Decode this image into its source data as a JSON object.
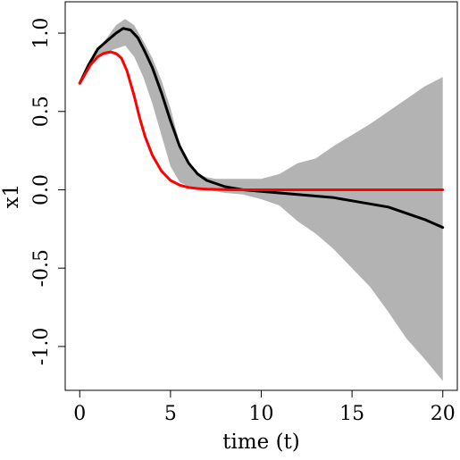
{
  "chart_data": {
    "type": "line",
    "xlabel": "time (t)",
    "ylabel": "x1",
    "xlim": [
      -0.8,
      20.8
    ],
    "ylim": [
      -1.28,
      1.2
    ],
    "xticks": [
      0,
      5,
      10,
      15,
      20
    ],
    "xtick_labels": [
      "0",
      "5",
      "10",
      "15",
      "20"
    ],
    "yticks": [
      -1.0,
      -0.5,
      0.0,
      0.5,
      1.0
    ],
    "ytick_labels": [
      "-1.0",
      "-0.5",
      "0.0",
      "0.5",
      "1.0"
    ],
    "grid": false,
    "band": {
      "color": "#b3b3b3",
      "x": [
        0,
        0.5,
        1,
        1.5,
        2,
        2.5,
        3,
        3.5,
        4,
        4.5,
        5,
        5.5,
        6,
        6.5,
        7,
        7.5,
        8,
        9,
        10,
        11,
        12,
        13,
        14,
        15,
        16,
        17,
        18,
        19,
        20
      ],
      "upper": [
        0.68,
        0.8,
        0.9,
        0.97,
        1.05,
        1.09,
        1.05,
        0.95,
        0.84,
        0.7,
        0.52,
        0.3,
        0.17,
        0.1,
        0.08,
        0.07,
        0.07,
        0.07,
        0.07,
        0.1,
        0.17,
        0.2,
        0.28,
        0.35,
        0.42,
        0.5,
        0.58,
        0.66,
        0.72
      ],
      "lower": [
        0.68,
        0.78,
        0.86,
        0.88,
        0.9,
        0.92,
        0.85,
        0.72,
        0.55,
        0.35,
        0.15,
        0.05,
        0.02,
        0.01,
        0.0,
        -0.01,
        -0.02,
        -0.03,
        -0.06,
        -0.1,
        -0.2,
        -0.28,
        -0.38,
        -0.5,
        -0.62,
        -0.78,
        -0.95,
        -1.08,
        -1.22
      ]
    },
    "series": [
      {
        "color": "#000000",
        "x": [
          0,
          0.5,
          1,
          1.5,
          2,
          2.4,
          2.8,
          3.2,
          3.6,
          4,
          4.5,
          5,
          5.5,
          6,
          6.5,
          7,
          7.5,
          8,
          9,
          10,
          11,
          12,
          13,
          14,
          15,
          16,
          17,
          18,
          19,
          20
        ],
        "y": [
          0.68,
          0.8,
          0.9,
          0.95,
          1.0,
          1.03,
          1.02,
          0.97,
          0.88,
          0.78,
          0.62,
          0.44,
          0.28,
          0.17,
          0.1,
          0.06,
          0.04,
          0.02,
          0.0,
          -0.01,
          -0.02,
          -0.03,
          -0.04,
          -0.05,
          -0.07,
          -0.09,
          -0.11,
          -0.15,
          -0.19,
          -0.24
        ]
      },
      {
        "color": "#ff0000",
        "x": [
          0,
          0.3,
          0.6,
          1,
          1.3,
          1.7,
          2,
          2.3,
          2.6,
          3,
          3.3,
          3.6,
          4,
          4.5,
          5,
          5.5,
          6,
          6.5,
          7,
          8,
          9,
          10,
          12,
          14,
          16,
          18,
          20
        ],
        "y": [
          0.68,
          0.74,
          0.8,
          0.85,
          0.87,
          0.88,
          0.87,
          0.84,
          0.76,
          0.6,
          0.46,
          0.34,
          0.22,
          0.12,
          0.06,
          0.03,
          0.015,
          0.008,
          0.004,
          0.001,
          0.0,
          0.0,
          0.0,
          0.0,
          0.0,
          0.0,
          0.0
        ]
      }
    ]
  }
}
